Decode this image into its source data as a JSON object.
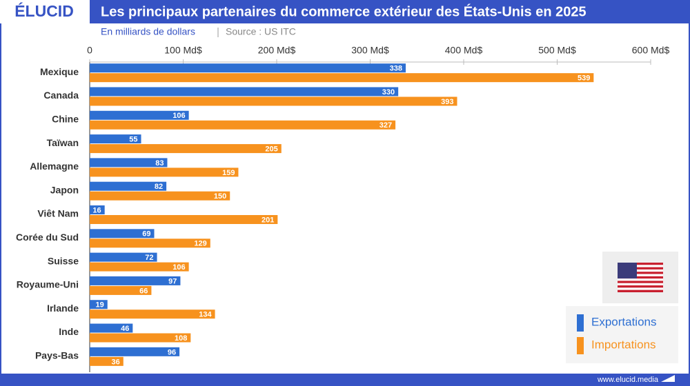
{
  "brand": "ÉLUCID",
  "website": "www.elucid.media",
  "chart_data": {
    "type": "bar",
    "orientation": "horizontal",
    "title": "Les principaux partenaires du commerce extérieur des États-Unis en 2025",
    "subtitle": "En milliards de dollars",
    "source": "Source : US ITC",
    "categories": [
      "Mexique",
      "Canada",
      "Chine",
      "Taïwan",
      "Allemagne",
      "Japon",
      "Viêt Nam",
      "Corée du Sud",
      "Suisse",
      "Royaume-Uni",
      "Irlande",
      "Inde",
      "Pays-Bas"
    ],
    "series": [
      {
        "name": "Exportations",
        "color": "#2e6fd2",
        "values": [
          338,
          330,
          106,
          55,
          83,
          82,
          16,
          69,
          72,
          97,
          19,
          46,
          96
        ]
      },
      {
        "name": "Importations",
        "color": "#f7921e",
        "values": [
          539,
          393,
          327,
          205,
          159,
          150,
          201,
          129,
          106,
          66,
          134,
          108,
          36
        ]
      }
    ],
    "xlim": [
      0,
      600
    ],
    "xticks": [
      0,
      {
        "value": 100,
        "label": "100 Md$"
      },
      {
        "value": 200,
        "label": "200 Md$"
      },
      {
        "value": 300,
        "label": "300 Md$"
      },
      {
        "value": 400,
        "label": "400 Md$"
      },
      {
        "value": 500,
        "label": "500 Md$"
      },
      {
        "value": 600,
        "label": "600 Md$"
      }
    ],
    "legend": "bottom-right"
  }
}
